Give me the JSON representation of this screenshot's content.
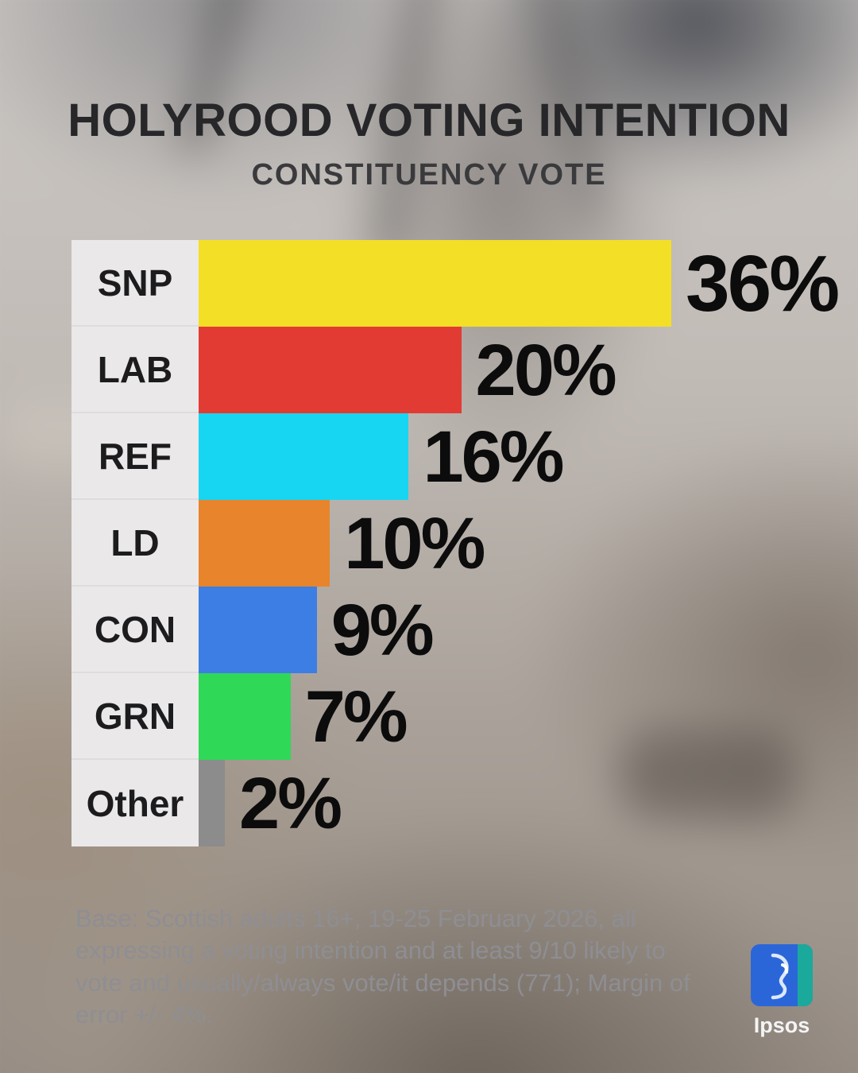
{
  "header": {
    "title": "HOLYROOD VOTING INTENTION",
    "subtitle": "CONSTITUENCY VOTE"
  },
  "chart_data": {
    "type": "bar",
    "orientation": "horizontal",
    "title": "HOLYROOD VOTING INTENTION",
    "subtitle": "CONSTITUENCY VOTE",
    "categories": [
      "SNP",
      "LAB",
      "REF",
      "LD",
      "CON",
      "GRN",
      "Other"
    ],
    "values": [
      36,
      20,
      16,
      10,
      9,
      7,
      2
    ],
    "value_labels": [
      "36%",
      "20%",
      "16%",
      "10%",
      "9%",
      "7%",
      "2%"
    ],
    "colors": [
      "#F3DF26",
      "#E23B34",
      "#17D6F2",
      "#E8842B",
      "#3C7EE4",
      "#2FD857",
      "#8C8C8C"
    ],
    "xlim": [
      0,
      36
    ],
    "grid": false,
    "legend": "none"
  },
  "footer": {
    "base_text": "Base: Scottish adults 16+, 19-25 February 2026, all expressing a voting intention and at least 9/10 likely to vote and usually/always vote/it depends (771); Margin of error +/- 4%.",
    "logo_text": "Ipsos"
  },
  "colors": {
    "title_text": "#27272a",
    "value_text": "#0c0c0d",
    "note_text": "#8e8e93",
    "label_panel": "#eae8e9",
    "logo_blue": "#2b66d9",
    "logo_teal": "#1ba99c"
  }
}
